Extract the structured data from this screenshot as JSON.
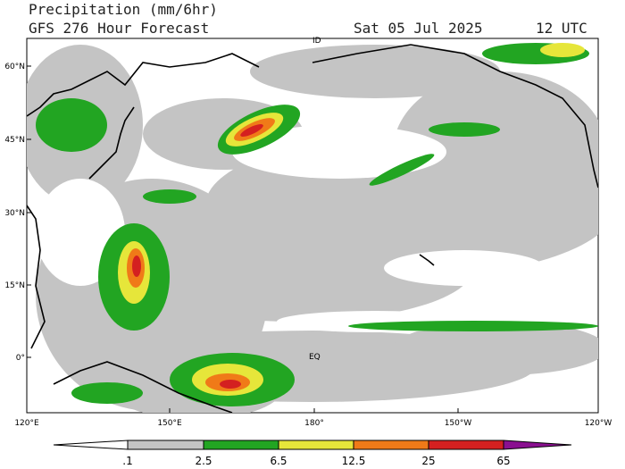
{
  "header": {
    "title": "Precipitation (mm/6hr)",
    "subtitle": "GFS 276 Hour Forecast",
    "date": "Sat 05 Jul 2025",
    "time": "12 UTC"
  },
  "map": {
    "lat_labels": [
      "60°N",
      "45°N",
      "30°N",
      "15°N",
      "0°"
    ],
    "lon_labels": [
      "120°E",
      "150°E",
      "180°",
      "150°W",
      "120°W"
    ],
    "annotations": [
      "ID",
      "EQ"
    ]
  },
  "colorbar": {
    "labels": [
      ".1",
      "2.5",
      "6.5",
      "12.5",
      "25",
      "65"
    ]
  }
}
